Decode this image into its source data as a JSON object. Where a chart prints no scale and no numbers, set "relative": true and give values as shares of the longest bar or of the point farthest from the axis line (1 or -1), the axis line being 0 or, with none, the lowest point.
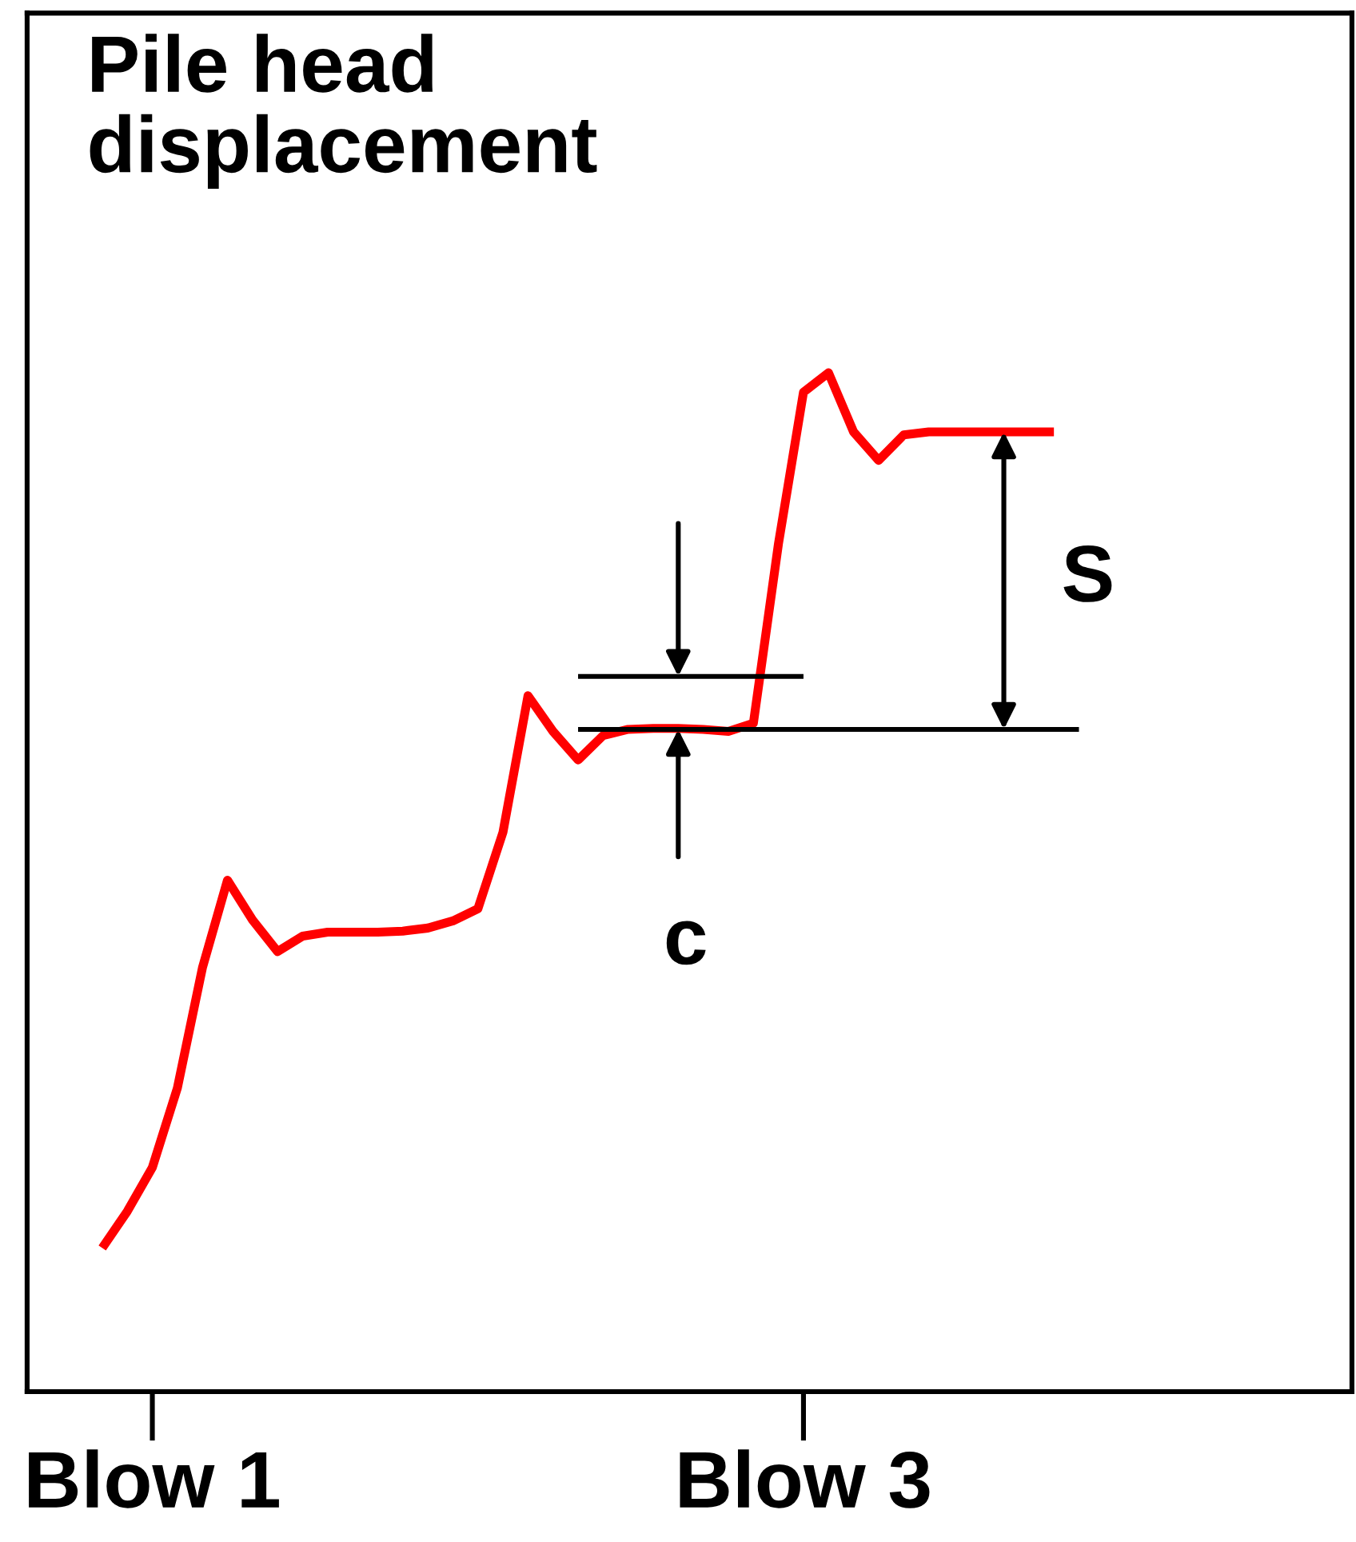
{
  "chart_data": {
    "type": "line",
    "title": "Pile head displacement",
    "relative": true,
    "categories": [
      null,
      null,
      "Blow 1",
      null,
      null,
      null,
      null,
      null,
      null,
      null,
      null,
      null,
      null,
      null,
      null,
      null,
      null,
      null,
      null,
      null,
      null,
      null,
      null,
      null,
      null,
      null,
      null,
      null,
      "Blow 3",
      null,
      null,
      null,
      null,
      null,
      null,
      null,
      null,
      null,
      null,
      null
    ],
    "grid": false,
    "marker": "none",
    "line_style": "solid",
    "series": [
      {
        "color": "#ff0000",
        "values": [
          0.141,
          0.177,
          0.22,
          0.298,
          0.416,
          0.502,
          0.463,
          0.432,
          0.447,
          0.451,
          0.451,
          0.451,
          0.452,
          0.455,
          0.462,
          0.474,
          0.549,
          0.683,
          0.648,
          0.62,
          0.644,
          0.65,
          0.651,
          0.651,
          0.65,
          0.648,
          0.656,
          0.832,
          0.981,
          1.0,
          0.942,
          0.914,
          0.939,
          0.942,
          0.942,
          0.942,
          0.942,
          0.942,
          0.942,
          null
        ]
      },
      {
        "color": "#000000",
        "values": [
          null,
          null,
          null,
          null,
          null,
          null,
          null,
          null,
          null,
          null,
          null,
          null,
          null,
          null,
          null,
          null,
          null,
          null,
          null,
          0.65,
          0.65,
          0.65,
          0.65,
          0.65,
          0.65,
          0.65,
          0.65,
          0.65,
          0.65,
          0.65,
          0.65,
          0.65,
          0.65,
          0.65,
          0.65,
          0.65,
          0.65,
          0.65,
          0.65,
          0.65
        ]
      },
      {
        "color": "#000000",
        "values": [
          null,
          null,
          null,
          null,
          null,
          null,
          null,
          null,
          null,
          null,
          null,
          null,
          null,
          null,
          null,
          null,
          null,
          null,
          null,
          0.702,
          0.702,
          0.702,
          0.702,
          0.702,
          0.702,
          0.702,
          0.702,
          0.702,
          0.702,
          null,
          null,
          null,
          null,
          null,
          null,
          null,
          null,
          null,
          null,
          null
        ]
      }
    ],
    "annotations": [
      "S",
      "c"
    ]
  }
}
